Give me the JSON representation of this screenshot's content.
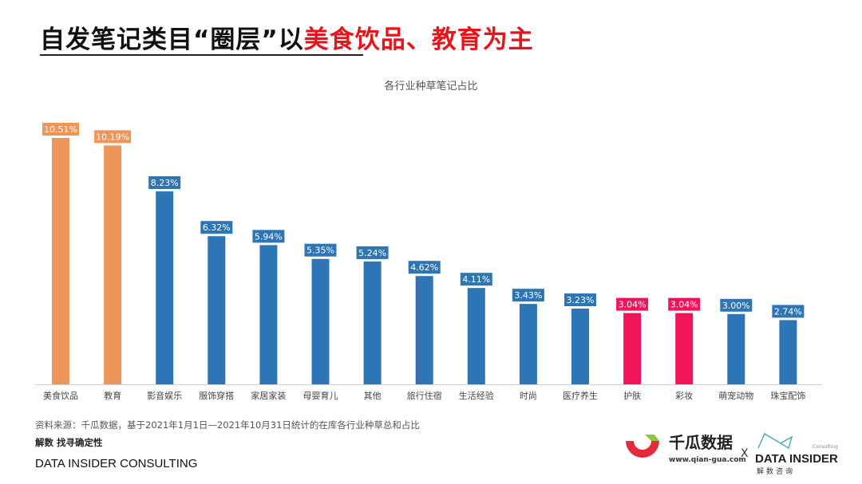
{
  "header": {
    "title_black": "自发笔记类目“圈层”以",
    "title_red": "美食饮品、教育为主"
  },
  "chart_data": {
    "type": "bar",
    "title": "各行业种草笔记占比",
    "categories": [
      "美食饮品",
      "教育",
      "影音娱乐",
      "服饰穿搭",
      "家居家装",
      "母婴育儿",
      "其他",
      "旅行住宿",
      "生活经验",
      "时尚",
      "医疗养生",
      "护肤",
      "彩妆",
      "萌宠动物",
      "珠宝配饰"
    ],
    "values": [
      10.51,
      10.19,
      8.23,
      6.32,
      5.94,
      5.35,
      5.24,
      4.62,
      4.11,
      3.43,
      3.23,
      3.04,
      3.04,
      3.0,
      2.74
    ],
    "labels": [
      "10.51%",
      "10.19%",
      "8.23%",
      "6.32%",
      "5.94%",
      "5.35%",
      "5.24%",
      "4.62%",
      "4.11%",
      "3.43%",
      "3.23%",
      "3.04%",
      "3.04%",
      "3.00%",
      "2.74%"
    ],
    "colors": [
      "#F0955A",
      "#F0955A",
      "#2E75B6",
      "#2E75B6",
      "#2E75B6",
      "#2E75B6",
      "#2E75B6",
      "#2E75B6",
      "#2E75B6",
      "#2E75B6",
      "#2E75B6",
      "#F0145A",
      "#F0145A",
      "#2E75B6",
      "#2E75B6"
    ],
    "unit": "%",
    "ylim": [
      0,
      11
    ],
    "grid": false
  },
  "footer": {
    "source": "资料来源：千瓜数据，基于2021年1月1日—2021年10月31日统计的在库各行业种草总和占比",
    "slogan": "解数 找寻确定性",
    "brand": "DATA INSIDER CONSULTING",
    "qg_name": "千瓜数据",
    "qg_url": "www.qian-gua.com",
    "x": "X",
    "di_name": "DATA INSIDER",
    "di_cn": "解数咨询",
    "di_consulting": "Consulting"
  }
}
